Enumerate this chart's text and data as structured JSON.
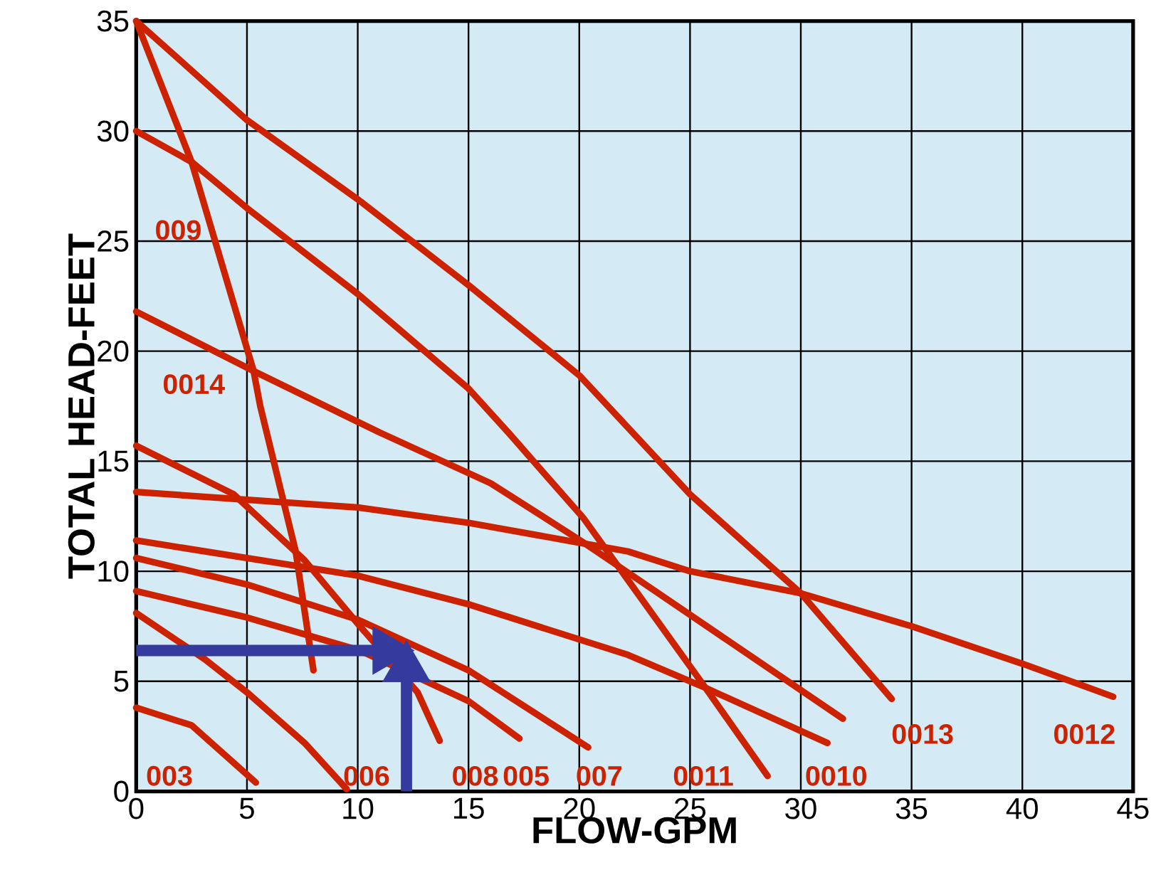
{
  "chart_data": {
    "type": "line",
    "xlabel": "FLOW-GPM",
    "ylabel": "TOTAL HEAD-FEET",
    "xlim": [
      0,
      45
    ],
    "ylim": [
      0,
      35
    ],
    "xticks": [
      0,
      5,
      10,
      15,
      20,
      25,
      30,
      35,
      40,
      45
    ],
    "yticks": [
      0,
      5,
      10,
      15,
      20,
      25,
      30,
      35
    ],
    "grid": true,
    "series": [
      {
        "name": "003",
        "color": "#cc2200",
        "x": [
          0,
          2.5,
          5.4
        ],
        "values": [
          3.8,
          3.0,
          0.4
        ]
      },
      {
        "name": "006",
        "color": "#cc2200",
        "x": [
          0,
          3.1,
          5,
          7.6,
          9.5
        ],
        "values": [
          8.1,
          6.0,
          4.5,
          2.2,
          0.1
        ]
      },
      {
        "name": "008",
        "color": "#cc2200",
        "x": [
          0,
          4.4,
          7.6,
          10.1,
          12.7,
          13.7
        ],
        "values": [
          15.7,
          13.5,
          10.5,
          7.5,
          4.5,
          2.3
        ]
      },
      {
        "name": "005",
        "color": "#cc2200",
        "x": [
          0,
          5,
          10.1,
          15,
          17.3
        ],
        "values": [
          9.1,
          7.9,
          6.4,
          4.1,
          2.4
        ]
      },
      {
        "name": "007",
        "color": "#cc2200",
        "x": [
          0,
          5,
          10,
          15,
          20.4
        ],
        "values": [
          10.6,
          9.4,
          7.8,
          5.5,
          2.0
        ]
      },
      {
        "name": "0011",
        "color": "#cc2200",
        "x": [
          0,
          2.5,
          5,
          10,
          15,
          16.8,
          20.2,
          22.2,
          25.7,
          28.5
        ],
        "values": [
          30.0,
          28.6,
          26.5,
          22.6,
          18.3,
          16.3,
          12.4,
          9.6,
          4.7,
          0.7
        ]
      },
      {
        "name": "0010",
        "color": "#cc2200",
        "x": [
          0,
          10,
          15,
          22.2,
          25.7,
          31.2
        ],
        "values": [
          11.4,
          9.8,
          8.5,
          6.2,
          4.7,
          2.2
        ]
      },
      {
        "name": "0013",
        "color": "#cc2200",
        "x": [
          0,
          5,
          10,
          15,
          20,
          25,
          30,
          34.1
        ],
        "values": [
          35,
          30.5,
          26.9,
          23.0,
          18.9,
          13.5,
          9.0,
          4.2
        ]
      },
      {
        "name": "0012",
        "color": "#cc2200",
        "x": [
          0,
          10,
          15,
          22.2,
          25,
          30,
          35,
          40,
          44.1
        ],
        "values": [
          13.6,
          12.9,
          12.2,
          10.9,
          10.0,
          9.0,
          7.5,
          5.8,
          4.3
        ]
      },
      {
        "name": "009",
        "color": "#cc2200",
        "x": [
          0,
          2.5,
          5.3,
          5.6,
          7.2,
          8.0
        ],
        "values": [
          35,
          28.6,
          19.1,
          17.5,
          10.9,
          5.5
        ]
      },
      {
        "name": "0014",
        "color": "#cc2200",
        "x": [
          0,
          5.3,
          11,
          16,
          20.2,
          22.4,
          31.9
        ],
        "values": [
          21.8,
          19.1,
          16.3,
          14.0,
          11.3,
          9.8,
          3.3
        ]
      },
      {
        "color": "#353a9e",
        "x": [
          0,
          11.3
        ],
        "values": [
          6.4,
          6.4
        ]
      },
      {
        "color": "#353a9e",
        "x": [
          12.2,
          12.2
        ],
        "values": [
          0,
          5.6
        ]
      }
    ]
  }
}
